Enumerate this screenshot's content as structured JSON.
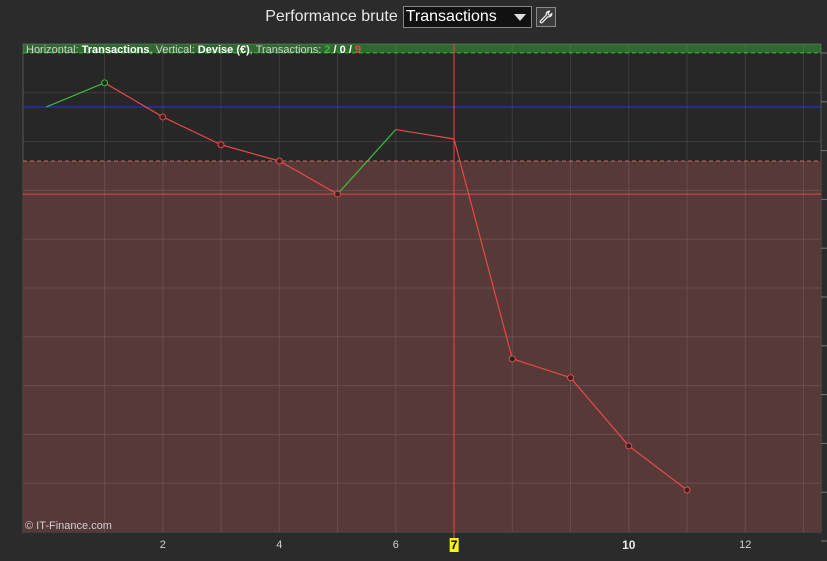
{
  "header": {
    "title": "Performance brute",
    "select_value": "Transactions",
    "settings_icon": "wrench-icon"
  },
  "info": {
    "horizontal_label": "Horizontal: ",
    "horizontal_value": "Transactions",
    "vertical_label": ", Vertical: ",
    "vertical_value": "Devise (€)",
    "transactions_label": ", Transactions: ",
    "wins": "2",
    "sep1": " / ",
    "neutral": "0",
    "sep2": " / ",
    "losses": "9"
  },
  "credit": "© IT-Finance.com",
  "colors": {
    "background": "#2b2b2b",
    "plot_bg": "#272727",
    "loss_zone": "#573938",
    "win_line": "#3bbb3b",
    "loss_line": "#e84848",
    "blue_line": "#2a32e0",
    "highlight": "#f2f21a"
  },
  "chart_data": {
    "type": "line",
    "x": [
      0,
      1,
      2,
      3,
      4,
      5,
      6,
      7,
      8,
      9,
      10,
      11
    ],
    "y": [
      0,
      4.6,
      -1.9,
      -7.2,
      -10.3,
      -16.6,
      -4.3,
      -6.1,
      -48.0,
      -51.6,
      -64.6,
      -73.0
    ],
    "segment_colors": [
      "green",
      "red",
      "red",
      "red",
      "red",
      "green",
      "red",
      "red",
      "red",
      "red",
      "red"
    ],
    "marker_points": [
      1,
      2,
      3,
      4,
      5,
      8,
      9,
      10,
      11
    ],
    "xlim": [
      -0.4,
      13.3
    ],
    "ylim": [
      -81,
      12
    ],
    "x_ticks": [
      "2",
      "4",
      "6",
      "7",
      "10",
      "12"
    ],
    "x_tick_values": [
      2,
      4,
      6,
      7,
      10,
      12
    ],
    "highlighted_x": "7",
    "bold_x": "10",
    "reference_lines": [
      {
        "kind": "top-dashed",
        "y": 10.3,
        "color": "green"
      },
      {
        "kind": "baseline",
        "y": 0,
        "color": "blue"
      },
      {
        "kind": "loss-dashed",
        "y": -10.3,
        "color": "red"
      },
      {
        "kind": "loss-solid",
        "y": -16.6,
        "color": "red"
      }
    ],
    "cursor_x": 7.0,
    "grid": true,
    "xlabel": "",
    "ylabel": ""
  }
}
